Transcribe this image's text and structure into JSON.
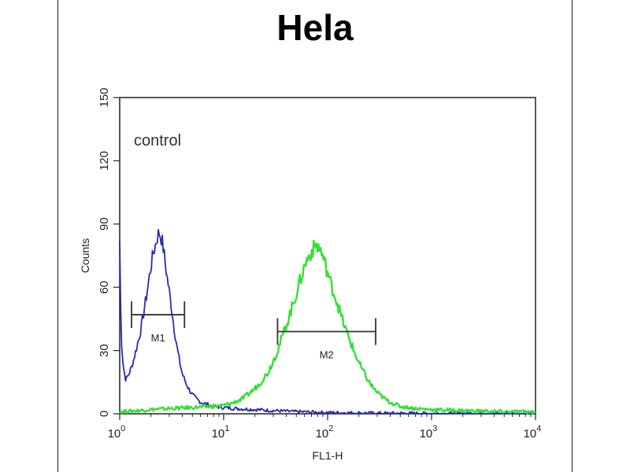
{
  "chart_data": {
    "type": "line",
    "title": "Hela",
    "xlabel": "FL1-H",
    "ylabel": "Counts",
    "x_scale": "log",
    "xlim": [
      1,
      10000
    ],
    "ylim": [
      0,
      150
    ],
    "x_ticks": [
      {
        "value": 1,
        "base": "10",
        "exp": "0"
      },
      {
        "value": 10,
        "base": "10",
        "exp": "1"
      },
      {
        "value": 100,
        "base": "10",
        "exp": "2"
      },
      {
        "value": 1000,
        "base": "10",
        "exp": "3"
      },
      {
        "value": 10000,
        "base": "10",
        "exp": "4"
      }
    ],
    "y_ticks": [
      {
        "value": 0,
        "label": "0"
      },
      {
        "value": 30,
        "label": "30"
      },
      {
        "value": 60,
        "label": "60"
      },
      {
        "value": 90,
        "label": "90"
      },
      {
        "value": 120,
        "label": "120"
      },
      {
        "value": 150,
        "label": "150"
      }
    ],
    "annotation": "control",
    "series": [
      {
        "color": "#2a2ab0",
        "x": [
          1.0,
          1.02,
          1.05,
          1.1,
          1.15,
          1.2,
          1.3,
          1.4,
          1.5,
          1.6,
          1.7,
          1.8,
          1.9,
          2.0,
          2.1,
          2.2,
          2.3,
          2.4,
          2.5,
          2.6,
          2.7,
          2.8,
          3.0,
          3.2,
          3.4,
          3.6,
          3.8,
          4.0,
          4.3,
          4.6,
          5.0,
          5.5,
          6.0,
          7.0,
          8.0,
          10.0,
          13.0,
          20.0,
          30.0,
          50.0,
          100.0,
          300.0,
          1000.0,
          10000.0
        ],
        "y": [
          82,
          50,
          30,
          20,
          16,
          18,
          22,
          28,
          34,
          40,
          48,
          55,
          63,
          70,
          76,
          80,
          84,
          86,
          84,
          80,
          74,
          68,
          58,
          48,
          38,
          30,
          24,
          19,
          15,
          12,
          9,
          7,
          5.5,
          4.5,
          3.5,
          3,
          2.5,
          2,
          1.5,
          1,
          0.6,
          0.3,
          0.2,
          0.1
        ]
      },
      {
        "color": "#33e033",
        "x": [
          1.0,
          1.5,
          2.0,
          3.0,
          5.0,
          8.0,
          10.0,
          12.0,
          15.0,
          18.0,
          22.0,
          27.0,
          33.0,
          40.0,
          48.0,
          55.0,
          62.0,
          70.0,
          78.0,
          85.0,
          92.0,
          100.0,
          110.0,
          125.0,
          140.0,
          160.0,
          185.0,
          210.0,
          250.0,
          300.0,
          380.0,
          500.0,
          700.0,
          1000.0,
          2000.0,
          5000.0,
          10000.0
        ],
        "y": [
          1,
          1.5,
          2,
          2.5,
          3,
          3.5,
          4,
          5,
          7,
          10,
          14,
          20,
          30,
          42,
          54,
          64,
          72,
          77,
          80,
          78,
          73,
          67,
          60,
          52,
          44,
          36,
          28,
          22,
          15,
          10,
          6,
          3.5,
          2.5,
          2,
          1.5,
          1,
          1
        ]
      }
    ],
    "markers": [
      {
        "label": "M1",
        "x_start": 1.3,
        "x_end": 4.2,
        "y": 47
      },
      {
        "label": "M2",
        "x_start": 33,
        "x_end": 290,
        "y": 39
      }
    ]
  }
}
